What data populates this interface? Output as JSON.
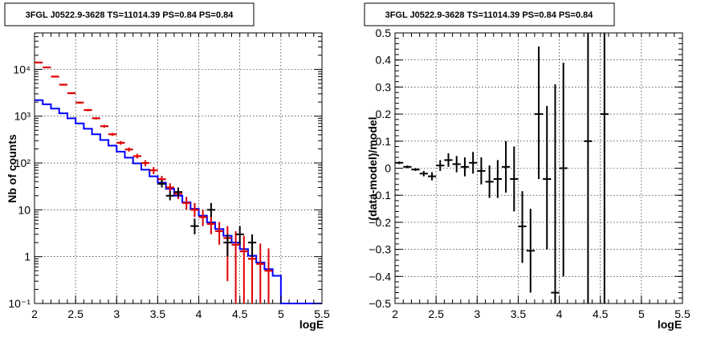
{
  "chart_data": [
    {
      "type": "scatter",
      "title": "3FGL J0522.9-3628 TS=11014.39 PS=0.84 PS=0.84",
      "xlabel": "logE",
      "ylabel": "Nb of counts",
      "xlim": [
        2,
        5.5
      ],
      "ylim": [
        0.1,
        60000
      ],
      "yscale": "log",
      "grid": true,
      "x_ticks": [
        "2",
        "2.5",
        "3",
        "3.5",
        "4",
        "4.5",
        "5",
        "5.5"
      ],
      "y_ticks": [
        {
          "label": "10⁻¹",
          "value": 0.1
        },
        {
          "label": "1",
          "value": 1
        },
        {
          "label": "10",
          "value": 10
        },
        {
          "label": "10²",
          "value": 100
        },
        {
          "label": "10³",
          "value": 1000
        },
        {
          "label": "10⁴",
          "value": 10000
        }
      ],
      "model_step": {
        "color": "#0000ff",
        "edges": [
          2.0,
          2.1,
          2.2,
          2.3,
          2.4,
          2.5,
          2.6,
          2.7,
          2.8,
          2.9,
          3.0,
          3.1,
          3.2,
          3.3,
          3.4,
          3.5,
          3.6,
          3.7,
          3.8,
          3.9,
          4.0,
          4.1,
          4.2,
          4.3,
          4.4,
          4.5,
          4.6,
          4.7,
          4.8,
          4.9,
          5.0,
          5.1,
          5.5
        ],
        "values": [
          2200,
          1800,
          1450,
          1150,
          900,
          700,
          540,
          410,
          310,
          235,
          175,
          130,
          98,
          72,
          52,
          38,
          28,
          20,
          14.5,
          10.5,
          7.5,
          5.4,
          3.9,
          2.8,
          2.0,
          1.45,
          1.05,
          0.75,
          0.54,
          0.39,
          0.1,
          0.1
        ]
      },
      "red_points": [
        {
          "x": 2.05,
          "y": 14000,
          "lo": 13600,
          "hi": 14400
        },
        {
          "x": 2.15,
          "y": 11000,
          "lo": 10600,
          "hi": 11400
        },
        {
          "x": 2.25,
          "y": 7000,
          "lo": 6700,
          "hi": 7300
        },
        {
          "x": 2.35,
          "y": 4700,
          "lo": 4500,
          "hi": 4900
        },
        {
          "x": 2.45,
          "y": 3100,
          "lo": 2950,
          "hi": 3250
        },
        {
          "x": 2.55,
          "y": 1950,
          "lo": 1850,
          "hi": 2050
        },
        {
          "x": 2.65,
          "y": 1350,
          "lo": 1280,
          "hi": 1420
        },
        {
          "x": 2.75,
          "y": 900,
          "lo": 850,
          "hi": 950
        },
        {
          "x": 2.85,
          "y": 610,
          "lo": 570,
          "hi": 650
        },
        {
          "x": 2.95,
          "y": 410,
          "lo": 380,
          "hi": 440
        },
        {
          "x": 3.05,
          "y": 270,
          "lo": 245,
          "hi": 295
        },
        {
          "x": 3.15,
          "y": 195,
          "lo": 175,
          "hi": 215
        },
        {
          "x": 3.25,
          "y": 140,
          "lo": 125,
          "hi": 157
        },
        {
          "x": 3.35,
          "y": 100,
          "lo": 85,
          "hi": 115
        },
        {
          "x": 3.45,
          "y": 70,
          "lo": 58,
          "hi": 82
        },
        {
          "x": 3.55,
          "y": 45,
          "lo": 38,
          "hi": 53
        },
        {
          "x": 3.65,
          "y": 30,
          "lo": 24,
          "hi": 37
        },
        {
          "x": 3.75,
          "y": 22,
          "lo": 17,
          "hi": 28
        },
        {
          "x": 3.85,
          "y": 14,
          "lo": 10,
          "hi": 19
        },
        {
          "x": 3.95,
          "y": 10,
          "lo": 7,
          "hi": 14
        },
        {
          "x": 4.05,
          "y": 7,
          "lo": 4.5,
          "hi": 10
        },
        {
          "x": 4.15,
          "y": 5,
          "lo": 3,
          "hi": 7.5
        },
        {
          "x": 4.25,
          "y": 3.5,
          "lo": 1.8,
          "hi": 5.5
        },
        {
          "x": 4.35,
          "y": 2.5,
          "lo": 0.3,
          "hi": 4.5
        },
        {
          "x": 4.45,
          "y": 1.8,
          "lo": 0.1,
          "hi": 3.5
        },
        {
          "x": 4.55,
          "y": 1.3,
          "lo": 0.1,
          "hi": 2.8
        },
        {
          "x": 4.65,
          "y": 0.9,
          "lo": 0.1,
          "hi": 2.2
        },
        {
          "x": 4.75,
          "y": 0.7,
          "lo": 0.1,
          "hi": 1.9
        },
        {
          "x": 4.85,
          "y": 0.5,
          "lo": 0.1,
          "hi": 1.5
        }
      ],
      "black_points": [
        {
          "x": 3.55,
          "y": 36,
          "lo": 30,
          "hi": 43
        },
        {
          "x": 3.65,
          "y": 20,
          "lo": 16,
          "hi": 25
        },
        {
          "x": 3.75,
          "y": 24,
          "lo": 19,
          "hi": 30
        },
        {
          "x": 3.95,
          "y": 4.5,
          "lo": 3,
          "hi": 6.5
        },
        {
          "x": 4.15,
          "y": 10,
          "lo": 7,
          "hi": 14
        },
        {
          "x": 4.35,
          "y": 2,
          "lo": 1,
          "hi": 3
        },
        {
          "x": 4.5,
          "y": 3,
          "lo": 1.8,
          "hi": 4.5
        },
        {
          "x": 4.65,
          "y": 2,
          "lo": 1,
          "hi": 3
        }
      ]
    },
    {
      "type": "scatter",
      "title": "3FGL J0522.9-3628 TS=11014.39 PS=0.84 PS=0.84",
      "xlabel": "logE",
      "ylabel": "(data-model)/model",
      "xlim": [
        2,
        5.5
      ],
      "ylim": [
        -0.5,
        0.5
      ],
      "grid": true,
      "x_ticks": [
        "2",
        "2.5",
        "3",
        "3.5",
        "4",
        "4.5",
        "5",
        "5.5"
      ],
      "y_ticks": [
        "−0.5",
        "−0.4",
        "−0.3",
        "−0.2",
        "−0.1",
        "0",
        "0.1",
        "0.2",
        "0.3",
        "0.4",
        "0.5"
      ],
      "points": [
        {
          "x": 2.05,
          "y": 0.02,
          "lo": 0.015,
          "hi": 0.025
        },
        {
          "x": 2.15,
          "y": 0.005,
          "lo": 0.0,
          "hi": 0.01
        },
        {
          "x": 2.25,
          "y": -0.005,
          "lo": -0.01,
          "hi": 0.0
        },
        {
          "x": 2.35,
          "y": -0.02,
          "lo": -0.03,
          "hi": -0.01
        },
        {
          "x": 2.45,
          "y": -0.03,
          "lo": -0.045,
          "hi": -0.015
        },
        {
          "x": 2.55,
          "y": 0.01,
          "lo": -0.01,
          "hi": 0.03
        },
        {
          "x": 2.65,
          "y": 0.03,
          "lo": 0.005,
          "hi": 0.055
        },
        {
          "x": 2.75,
          "y": 0.015,
          "lo": -0.015,
          "hi": 0.045
        },
        {
          "x": 2.85,
          "y": 0.005,
          "lo": -0.03,
          "hi": 0.04
        },
        {
          "x": 2.95,
          "y": 0.02,
          "lo": -0.02,
          "hi": 0.06
        },
        {
          "x": 3.05,
          "y": -0.01,
          "lo": -0.06,
          "hi": 0.04
        },
        {
          "x": 3.15,
          "y": -0.05,
          "lo": -0.11,
          "hi": 0.01
        },
        {
          "x": 3.25,
          "y": -0.04,
          "lo": -0.11,
          "hi": 0.03
        },
        {
          "x": 3.35,
          "y": 0.005,
          "lo": -0.09,
          "hi": 0.1
        },
        {
          "x": 3.45,
          "y": -0.04,
          "lo": -0.16,
          "hi": 0.08
        },
        {
          "x": 3.55,
          "y": -0.215,
          "lo": -0.35,
          "hi": -0.085
        },
        {
          "x": 3.65,
          "y": -0.305,
          "lo": -0.46,
          "hi": -0.15
        },
        {
          "x": 3.75,
          "y": 0.2,
          "lo": -0.04,
          "hi": 0.45
        },
        {
          "x": 3.85,
          "y": -0.04,
          "lo": -0.3,
          "hi": 0.23
        },
        {
          "x": 3.95,
          "y": -0.46,
          "lo": -0.5,
          "hi": 0.31
        },
        {
          "x": 4.05,
          "y": 0.0,
          "lo": -0.4,
          "hi": 0.39
        },
        {
          "x": 4.35,
          "y": 0.1,
          "lo": -0.5,
          "hi": 0.5
        },
        {
          "x": 4.55,
          "y": 0.2,
          "lo": -0.5,
          "hi": 0.5
        }
      ]
    }
  ]
}
